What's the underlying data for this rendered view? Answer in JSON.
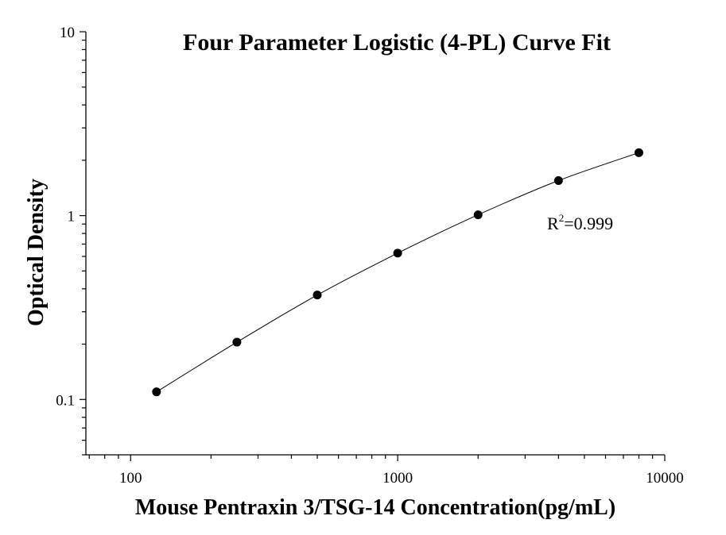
{
  "chart_data": {
    "type": "scatter",
    "title": "Four Parameter Logistic (4-PL) Curve Fit",
    "xlabel": "Mouse Pentraxin 3/TSG-14 Concentration(pg/mL)",
    "ylabel": "Optical Density",
    "x_scale": "log",
    "y_scale": "log",
    "xlim": [
      68,
      10000
    ],
    "ylim": [
      0.05,
      10
    ],
    "x_ticks": [
      100,
      1000,
      10000
    ],
    "x_tick_labels": [
      "100",
      "1000",
      "10000"
    ],
    "y_ticks": [
      0.1,
      1,
      10
    ],
    "y_tick_labels": [
      "0.1",
      "1",
      "10"
    ],
    "grid": false,
    "series": [
      {
        "x": [
          125,
          250,
          500,
          1000,
          2000,
          4000,
          8000
        ],
        "y": [
          0.11,
          0.205,
          0.37,
          0.625,
          1.01,
          1.55,
          2.2
        ]
      }
    ],
    "annotation": {
      "base": "R",
      "sup": "2",
      "value": "=0.999"
    }
  }
}
